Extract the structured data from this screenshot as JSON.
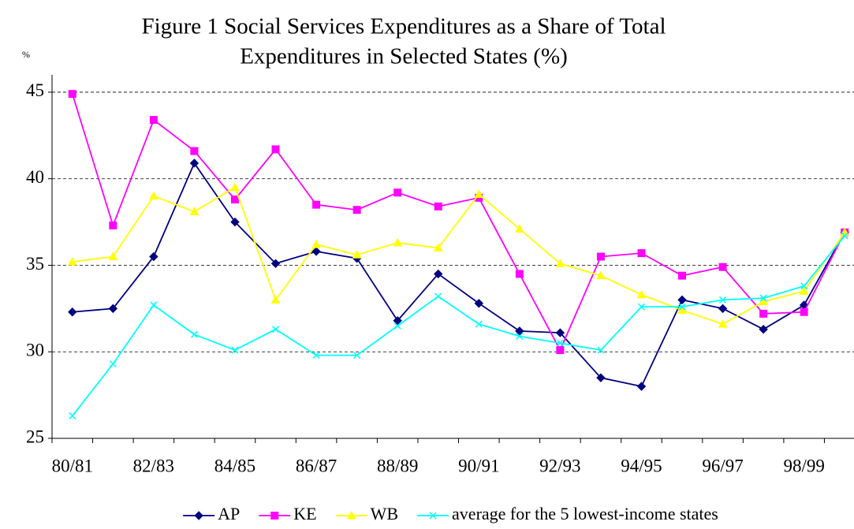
{
  "chart_data": {
    "type": "line",
    "title": [
      "Figure 1   Social Services Expenditures as a Share of Total",
      "Expenditures in Selected States (%)"
    ],
    "y_label": "%",
    "categories": [
      "80/81",
      null,
      "82/83",
      null,
      "84/85",
      null,
      "86/87",
      null,
      "88/89",
      null,
      "90/91",
      null,
      "92/93",
      null,
      "94/95",
      null,
      "96/97",
      null,
      "98/99",
      null
    ],
    "series": [
      {
        "name": "AP",
        "color": "#000080",
        "marker": "diamond",
        "values": [
          32.3,
          32.5,
          35.5,
          40.9,
          37.5,
          35.1,
          35.8,
          35.4,
          31.8,
          34.5,
          32.8,
          31.2,
          31.1,
          28.5,
          28.0,
          33.0,
          32.5,
          31.3,
          32.7,
          36.9
        ]
      },
      {
        "name": "KE",
        "color": "#ff00ff",
        "marker": "square",
        "values": [
          44.9,
          37.3,
          43.4,
          41.6,
          38.8,
          41.7,
          38.5,
          38.2,
          39.2,
          38.4,
          38.9,
          34.5,
          30.1,
          35.5,
          35.7,
          34.4,
          34.9,
          32.2,
          32.3,
          36.9
        ]
      },
      {
        "name": "WB",
        "color": "#ffff00",
        "marker": "triangle",
        "values": [
          35.2,
          35.5,
          39.0,
          38.1,
          39.5,
          33.0,
          36.2,
          35.6,
          36.3,
          36.0,
          39.1,
          37.1,
          35.1,
          34.4,
          33.3,
          32.4,
          31.6,
          32.9,
          33.5,
          36.9
        ]
      },
      {
        "name": "average for the 5 lowest-income states",
        "color": "#00ffff",
        "marker": "x",
        "values": [
          26.3,
          29.3,
          32.7,
          31.0,
          30.1,
          31.3,
          29.8,
          29.8,
          31.5,
          33.2,
          31.6,
          30.9,
          30.5,
          30.1,
          32.6,
          32.6,
          33.0,
          33.1,
          33.8,
          36.7
        ]
      }
    ],
    "ylim": [
      25,
      46
    ],
    "yticks": [
      25,
      30,
      35,
      40,
      45
    ],
    "grid": true,
    "legend": "bottom"
  }
}
